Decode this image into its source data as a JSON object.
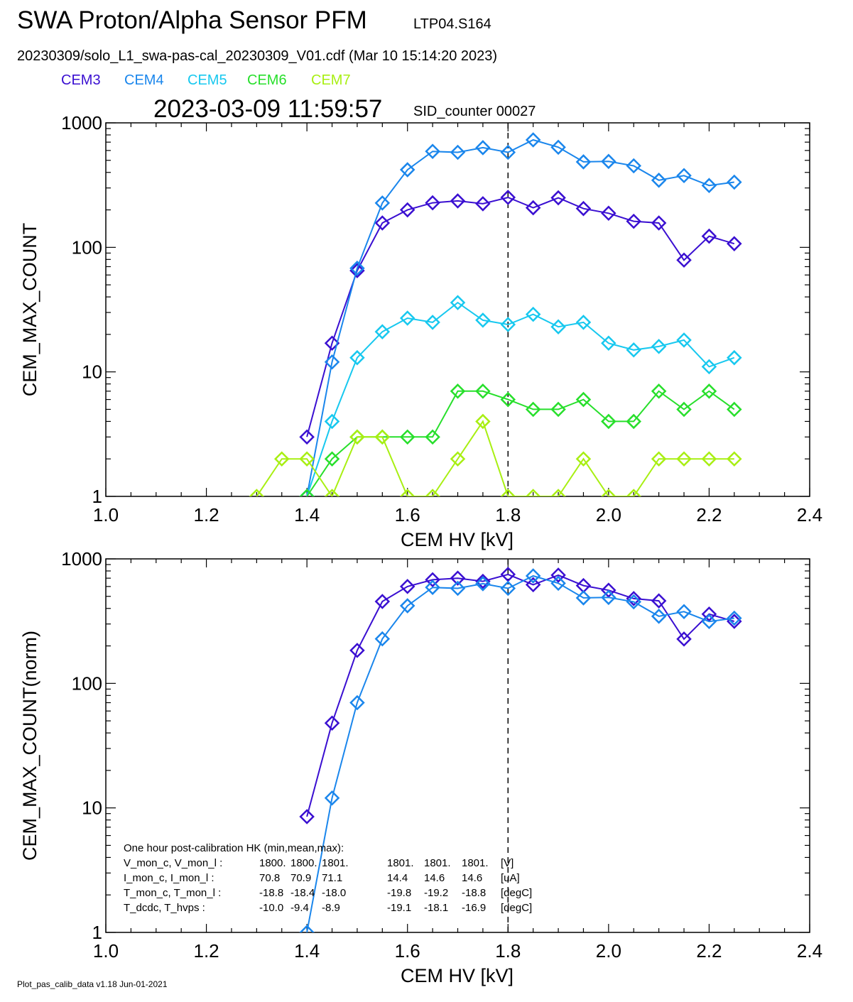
{
  "header": {
    "title": "SWA Proton/Alpha Sensor PFM",
    "test_id": "LTP04.S164",
    "file_line": "20230309/solo_L1_swa-pas-cal_20230309_V01.cdf  (Mar 10 15:14:20 2023)",
    "timestamp": "2023-03-09 11:59:57",
    "sid_counter": "SID_counter 00027"
  },
  "legend": [
    {
      "label": "CEM3",
      "color": "#3a0fd1"
    },
    {
      "label": "CEM4",
      "color": "#1a86ec"
    },
    {
      "label": "CEM5",
      "color": "#17c8ef"
    },
    {
      "label": "CEM6",
      "color": "#27df2b"
    },
    {
      "label": "CEM7",
      "color": "#a8ef12"
    }
  ],
  "footer": "Plot_pas_calib_data v1.18 Jun-01-2021",
  "hk": {
    "title": "One hour post-calibration HK (min,mean,max):",
    "rows": [
      {
        "label": "V_mon_c, V_mon_l :",
        "c": [
          "1800.",
          "1800.",
          "1801."
        ],
        "l": [
          "1801.",
          "1801.",
          "1801."
        ],
        "unit": "[V]"
      },
      {
        "label": "I_mon_c,  I_mon_l :",
        "c": [
          "70.8",
          "70.9",
          "71.1"
        ],
        "l": [
          "14.4",
          "14.6",
          "14.6"
        ],
        "unit": "[uA]"
      },
      {
        "label": "T_mon_c, T_mon_l :",
        "c": [
          "-18.8",
          "-18.4",
          "-18.0"
        ],
        "l": [
          "-19.8",
          "-19.2",
          "-18.8"
        ],
        "unit": "[degC]"
      },
      {
        "label": "T_dcdc,   T_hvps :",
        "c": [
          "-10.0",
          "-9.4",
          "-8.9"
        ],
        "l": [
          "-19.1",
          "-18.1",
          "-16.9"
        ],
        "unit": "[degC]"
      }
    ]
  },
  "chart_data": [
    {
      "type": "line",
      "xlabel": "CEM HV [kV]",
      "ylabel": "CEM_MAX_COUNT",
      "xlim": [
        1.0,
        2.4
      ],
      "ylim": [
        1,
        1000
      ],
      "yscale": "log",
      "xticks": [
        "1.0",
        "1.2",
        "1.4",
        "1.6",
        "1.8",
        "2.0",
        "2.2",
        "2.4"
      ],
      "yticks": [
        "1",
        "10",
        "100",
        "1000"
      ],
      "reference_line_x": 1.8,
      "series": [
        {
          "name": "CEM3",
          "color": "#3a0fd1",
          "x": [
            1.4,
            1.45,
            1.5,
            1.55,
            1.6,
            1.65,
            1.7,
            1.75,
            1.8,
            1.85,
            1.9,
            1.95,
            2.0,
            2.05,
            2.1,
            2.15,
            2.2,
            2.25
          ],
          "y": [
            3,
            17,
            65,
            157,
            200,
            228,
            236,
            224,
            252,
            208,
            250,
            205,
            188,
            162,
            157,
            79,
            123,
            107
          ]
        },
        {
          "name": "CEM4",
          "color": "#1a86ec",
          "x": [
            1.4,
            1.45,
            1.5,
            1.55,
            1.6,
            1.65,
            1.7,
            1.75,
            1.8,
            1.85,
            1.9,
            1.95,
            2.0,
            2.05,
            2.1,
            2.15,
            2.2,
            2.25
          ],
          "y": [
            1,
            12,
            68,
            227,
            420,
            590,
            580,
            632,
            580,
            730,
            637,
            486,
            490,
            452,
            346,
            377,
            314,
            334
          ]
        },
        {
          "name": "CEM5",
          "color": "#17c8ef",
          "x": [
            1.4,
            1.45,
            1.5,
            1.55,
            1.6,
            1.65,
            1.7,
            1.75,
            1.8,
            1.85,
            1.9,
            1.95,
            2.0,
            2.05,
            2.1,
            2.15,
            2.2,
            2.25
          ],
          "y": [
            1,
            4,
            13,
            21,
            27,
            25,
            36,
            26,
            24,
            29,
            23,
            25,
            17,
            15,
            16,
            18,
            11,
            13
          ]
        },
        {
          "name": "CEM6",
          "color": "#27df2b",
          "x": [
            1.4,
            1.45,
            1.5,
            1.55,
            1.6,
            1.65,
            1.7,
            1.75,
            1.8,
            1.85,
            1.9,
            1.95,
            2.0,
            2.05,
            2.1,
            2.15,
            2.2,
            2.25
          ],
          "y": [
            1,
            2,
            3,
            3,
            3,
            3,
            7,
            7,
            6,
            5,
            5,
            6,
            4,
            4,
            7,
            5,
            7,
            5
          ]
        },
        {
          "name": "CEM7",
          "color": "#a8ef12",
          "x": [
            1.3,
            1.35,
            1.4,
            1.45,
            1.5,
            1.55,
            1.6,
            1.65,
            1.7,
            1.75,
            1.8,
            1.85,
            1.9,
            1.95,
            2.0,
            2.05,
            2.1,
            2.15,
            2.2,
            2.25
          ],
          "y": [
            1,
            2,
            2,
            1,
            3,
            3,
            1,
            1,
            2,
            4,
            1,
            1,
            1,
            2,
            1,
            1,
            2,
            2,
            2,
            2
          ]
        }
      ]
    },
    {
      "type": "line",
      "xlabel": "CEM HV [kV]",
      "ylabel": "CEM_MAX_COUNT(norm)",
      "xlim": [
        1.0,
        2.4
      ],
      "ylim": [
        1,
        1000
      ],
      "yscale": "log",
      "xticks": [
        "1.0",
        "1.2",
        "1.4",
        "1.6",
        "1.8",
        "2.0",
        "2.2",
        "2.4"
      ],
      "yticks": [
        "1",
        "10",
        "100",
        "1000"
      ],
      "reference_line_x": 1.8,
      "series": [
        {
          "name": "CEM3",
          "color": "#3a0fd1",
          "x": [
            1.4,
            1.45,
            1.5,
            1.55,
            1.6,
            1.65,
            1.7,
            1.75,
            1.8,
            1.85,
            1.9,
            1.95,
            2.0,
            2.05,
            2.1,
            2.15,
            2.2,
            2.25
          ],
          "y": [
            8.5,
            48,
            184,
            455,
            600,
            680,
            700,
            660,
            750,
            620,
            740,
            610,
            560,
            480,
            460,
            227,
            360,
            315
          ]
        },
        {
          "name": "CEM4",
          "color": "#1a86ec",
          "x": [
            1.4,
            1.45,
            1.5,
            1.55,
            1.6,
            1.65,
            1.7,
            1.75,
            1.8,
            1.85,
            1.9,
            1.95,
            2.0,
            2.05,
            2.1,
            2.15,
            2.2,
            2.25
          ],
          "y": [
            1,
            12,
            70,
            228,
            420,
            590,
            580,
            632,
            580,
            730,
            637,
            486,
            490,
            452,
            346,
            377,
            314,
            334
          ]
        }
      ]
    }
  ]
}
